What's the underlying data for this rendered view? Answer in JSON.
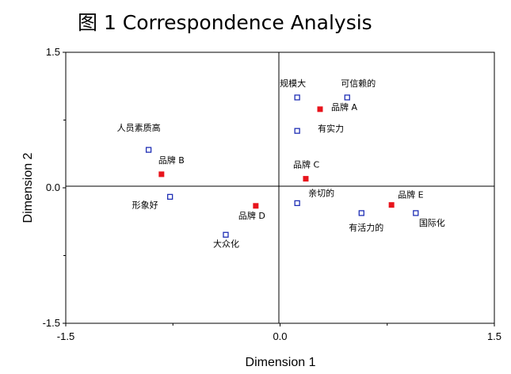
{
  "chart_data": {
    "type": "scatter",
    "title": "图 1    Correspondence Analysis",
    "xlabel": "Dimension 1",
    "ylabel": "Dimension 2",
    "xlim": [
      -1.5,
      1.5
    ],
    "ylim": [
      -1.5,
      1.5
    ],
    "xticks": [
      "-1.5",
      "0.0",
      "1.5"
    ],
    "yticks": [
      "1.5",
      "0.0",
      "-1.5"
    ],
    "grid": false,
    "series": [
      {
        "marker": "hollow-square",
        "color": "#1f2fb5",
        "points": [
          {
            "label": "规模大",
            "x": 0.12,
            "y": 1.0
          },
          {
            "label": "可信赖的",
            "x": 0.47,
            "y": 1.0
          },
          {
            "label": "有实力",
            "x": 0.12,
            "y": 0.63
          },
          {
            "label": "人员素质高",
            "x": -0.92,
            "y": 0.42
          },
          {
            "label": "形象好",
            "x": -0.77,
            "y": -0.1
          },
          {
            "label": "亲切的",
            "x": 0.12,
            "y": -0.17
          },
          {
            "label": "有活力的",
            "x": 0.57,
            "y": -0.28
          },
          {
            "label": "国际化",
            "x": 0.95,
            "y": -0.28
          },
          {
            "label": "大众化",
            "x": -0.38,
            "y": -0.52
          }
        ]
      },
      {
        "marker": "filled-square",
        "color": "#e8141c",
        "points": [
          {
            "label": "品牌 A",
            "x": 0.28,
            "y": 0.87
          },
          {
            "label": "品牌 B",
            "x": -0.83,
            "y": 0.15
          },
          {
            "label": "品牌 C",
            "x": 0.18,
            "y": 0.1
          },
          {
            "label": "品牌 D",
            "x": -0.17,
            "y": -0.2
          },
          {
            "label": "品牌 E",
            "x": 0.78,
            "y": -0.19
          }
        ]
      }
    ]
  }
}
